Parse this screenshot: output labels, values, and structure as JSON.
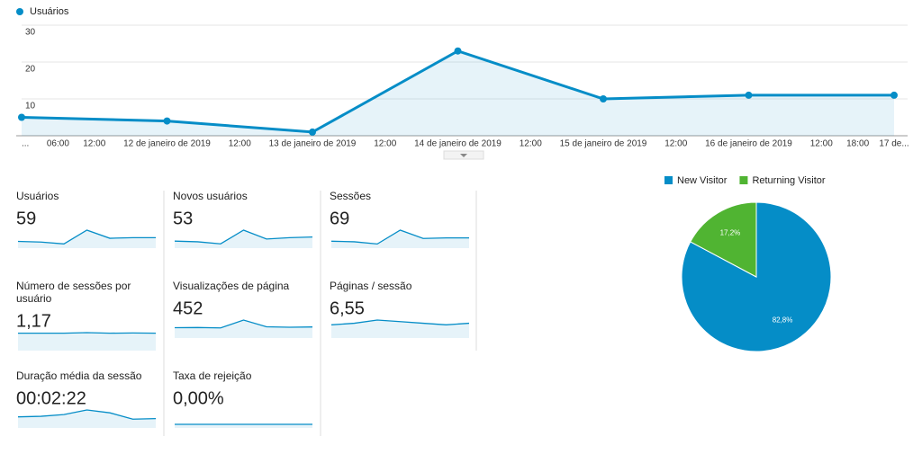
{
  "chart_data": [
    {
      "type": "line",
      "series": [
        {
          "name": "Usuários",
          "color": "#058dc7",
          "values": [
            5,
            4,
            1,
            23,
            10,
            11,
            11
          ]
        }
      ],
      "x": [
        0,
        1,
        2,
        3,
        4,
        5,
        6
      ],
      "xlim": [
        0,
        6
      ],
      "xticks": [
        {
          "value": 0,
          "label": "..."
        },
        {
          "value": 0.25,
          "label": "06:00"
        },
        {
          "value": 0.5,
          "label": "12:00"
        },
        {
          "value": 1,
          "label": "12 de janeiro de 2019"
        },
        {
          "value": 1.5,
          "label": "12:00"
        },
        {
          "value": 2,
          "label": "13 de janeiro de 2019"
        },
        {
          "value": 2.5,
          "label": "12:00"
        },
        {
          "value": 3,
          "label": "14 de janeiro de 2019"
        },
        {
          "value": 3.5,
          "label": "12:00"
        },
        {
          "value": 4,
          "label": "15 de janeiro de 2019"
        },
        {
          "value": 4.5,
          "label": "12:00"
        },
        {
          "value": 5,
          "label": "16 de janeiro de 2019"
        },
        {
          "value": 5.5,
          "label": "12:00"
        },
        {
          "value": 5.75,
          "label": "18:00"
        },
        {
          "value": 6,
          "label": "17 de..."
        }
      ],
      "ylim": [
        0,
        30
      ],
      "yticks": [
        10,
        20,
        30
      ],
      "grid": true
    },
    {
      "type": "pie",
      "categories": [
        "New Visitor",
        "Returning Visitor"
      ],
      "values": [
        82.8,
        17.2
      ],
      "value_labels": [
        "82,8%",
        "17,2%"
      ],
      "colors": [
        "#058dc7",
        "#50b432"
      ]
    }
  ],
  "metrics": [
    {
      "label": "Usuários",
      "value": "59",
      "spark": [
        5,
        4,
        1,
        23,
        10,
        11,
        11
      ]
    },
    {
      "label": "Novos usuários",
      "value": "53",
      "spark": [
        5,
        4,
        1,
        21,
        8,
        10,
        11
      ]
    },
    {
      "label": "Sessões",
      "value": "69",
      "spark": [
        6,
        5,
        1,
        26,
        11,
        12,
        12
      ]
    },
    {
      "label": "Número de sessões por usuário",
      "value": "1,17",
      "spark": [
        1.2,
        1.2,
        1.2,
        1.25,
        1.2,
        1.22,
        1.2
      ]
    },
    {
      "label": "Visualizações de página",
      "value": "452",
      "spark": [
        70,
        72,
        68,
        150,
        80,
        75,
        78
      ]
    },
    {
      "label": "Páginas / sessão",
      "value": "6,55",
      "spark": [
        6,
        7,
        9,
        8,
        7,
        6,
        7
      ]
    },
    {
      "label": "Duração média da sessão",
      "value": "00:02:22",
      "spark": [
        130,
        140,
        170,
        250,
        200,
        90,
        100
      ]
    },
    {
      "label": "Taxa de rejeição",
      "value": "0,00%",
      "spark": [
        0,
        0,
        0,
        0,
        0,
        0,
        0
      ]
    }
  ]
}
